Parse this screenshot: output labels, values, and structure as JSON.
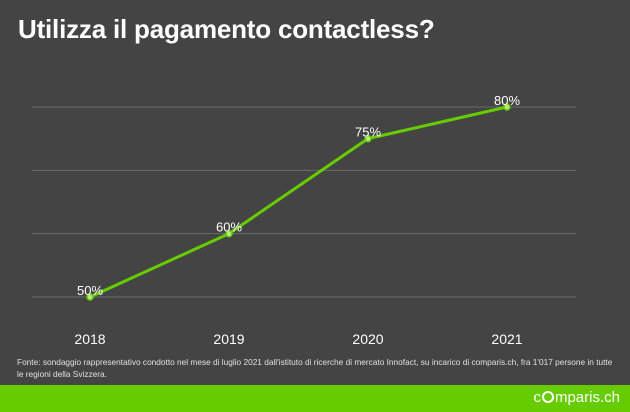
{
  "title": "Utilizza il pagamento contactless?",
  "source_note": "Fonte: sondaggio rappresentativo condotto nel mese di luglio 2021 dall'istituto di ricerche di mercato Innofact, su incarico di comparis.ch, fra 1'017 persone in tutte le regioni della Svizzera.",
  "brand": {
    "pre": "c",
    "post": "mparis.ch",
    "icon": "ring-icon"
  },
  "colors": {
    "background": "#444444",
    "line": "#66cc00",
    "footer": "#66cc00",
    "grid": "#6a6a6a",
    "text": "#ffffff"
  },
  "chart_data": {
    "type": "line",
    "title": "Utilizza il pagamento contactless?",
    "xlabel": "",
    "ylabel": "",
    "categories": [
      "2018",
      "2019",
      "2020",
      "2021"
    ],
    "series": [
      {
        "values": [
          50,
          60,
          75,
          80
        ],
        "labels": [
          "50%",
          "60%",
          "75%",
          "80%"
        ]
      }
    ],
    "ylim": [
      50,
      80
    ],
    "grid": true,
    "legend": "none"
  }
}
